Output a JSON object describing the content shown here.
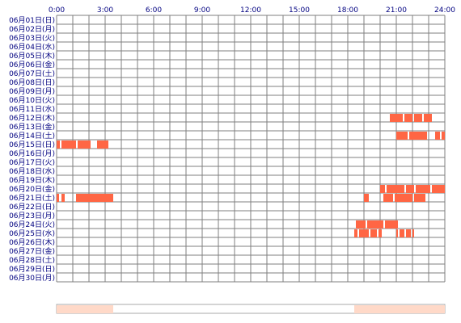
{
  "chart_data": {
    "type": "heatmap",
    "x_range_hours": [
      0,
      24
    ],
    "x_tick_labels": [
      "0:00",
      "3:00",
      "6:00",
      "9:00",
      "12:00",
      "15:00",
      "18:00",
      "21:00",
      "24:00"
    ],
    "x_minor_step_hours": 1,
    "row_labels": [
      "06月01日(日)",
      "06月02日(月)",
      "06月03日(火)",
      "06月04日(水)",
      "06月05日(木)",
      "06月06日(金)",
      "06月07日(土)",
      "06月08日(日)",
      "06月09日(月)",
      "06月10日(火)",
      "06月11日(水)",
      "06月12日(木)",
      "06月13日(金)",
      "06月14日(土)",
      "06月15日(日)",
      "06月16日(月)",
      "06月17日(火)",
      "06月18日(水)",
      "06月19日(木)",
      "06月20日(金)",
      "06月21日(土)",
      "06月22日(日)",
      "06月23日(月)",
      "06月24日(火)",
      "06月25日(水)",
      "06月26日(木)",
      "06月27日(金)",
      "06月28日(土)",
      "06月29日(日)",
      "06月30日(月)"
    ],
    "activity_intervals_hours": {
      "06月12日(木)": [
        [
          20.6,
          21.4
        ],
        [
          21.5,
          22.0
        ],
        [
          22.1,
          22.6
        ],
        [
          22.7,
          23.2
        ]
      ],
      "06月14日(土)": [
        [
          21.0,
          21.7
        ],
        [
          21.8,
          22.9
        ],
        [
          23.4,
          23.7
        ],
        [
          23.8,
          24.0
        ]
      ],
      "06月15日(日)": [
        [
          0.0,
          0.2
        ],
        [
          0.3,
          1.2
        ],
        [
          1.3,
          2.1
        ],
        [
          2.5,
          3.2
        ]
      ],
      "06月20日(金)": [
        [
          20.0,
          20.3
        ],
        [
          20.4,
          21.5
        ],
        [
          21.6,
          22.1
        ],
        [
          22.2,
          23.1
        ],
        [
          23.2,
          24.0
        ]
      ],
      "06月21日(土)": [
        [
          0.0,
          0.15
        ],
        [
          0.3,
          0.5
        ],
        [
          1.2,
          3.5
        ],
        [
          19.0,
          19.3
        ],
        [
          20.2,
          20.8
        ],
        [
          20.9,
          22.0
        ],
        [
          22.1,
          22.8
        ]
      ],
      "06月24日(火)": [
        [
          18.5,
          19.1
        ],
        [
          19.2,
          20.2
        ],
        [
          20.3,
          21.1
        ]
      ],
      "06月25日(水)": [
        [
          18.4,
          18.6
        ],
        [
          18.7,
          19.3
        ],
        [
          19.4,
          19.8
        ],
        [
          19.9,
          20.1
        ],
        [
          21.0,
          21.1
        ],
        [
          21.2,
          21.5
        ],
        [
          21.6,
          21.9
        ],
        [
          22.0,
          22.1
        ]
      ]
    },
    "summary_bands_hours": [
      [
        0.0,
        3.5
      ],
      [
        18.4,
        24.0
      ]
    ],
    "grid": true
  },
  "colors": {
    "grid": "#7f7f7f",
    "tick_label": "#000080",
    "activity": "#ff6644",
    "summary_band": "#ffd9c8",
    "summary_border": "#aaaaaa"
  }
}
